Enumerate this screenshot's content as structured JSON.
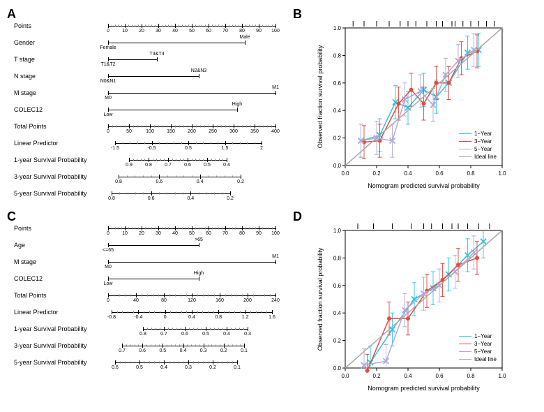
{
  "panels": {
    "A": {
      "rows": [
        {
          "label": "Points",
          "type": "axis",
          "start": 0,
          "end": 240,
          "ticks": [
            0,
            10,
            20,
            30,
            40,
            50,
            60,
            70,
            80,
            90,
            100
          ],
          "tickLabels": [
            "0",
            "10",
            "20",
            "30",
            "40",
            "50",
            "60",
            "70",
            "80",
            "90",
            "100"
          ]
        },
        {
          "label": "Gender",
          "type": "cat",
          "start": 0,
          "end": 196,
          "endpoints": [
            "Female",
            "Male"
          ]
        },
        {
          "label": "T stage",
          "type": "cat",
          "start": 0,
          "end": 70,
          "endpoints": [
            "T1&T2",
            "T3&T4"
          ]
        },
        {
          "label": "N stage",
          "type": "cat",
          "start": 0,
          "end": 130,
          "endpoints": [
            "N0&N1",
            "N2&N3"
          ]
        },
        {
          "label": "M stage",
          "type": "cat",
          "start": 0,
          "end": 240,
          "endpoints": [
            "M0",
            "M1"
          ]
        },
        {
          "label": "COLEC12",
          "type": "cat",
          "start": 0,
          "end": 185,
          "endpoints": [
            "Low",
            "High"
          ]
        },
        {
          "label": "Total Points",
          "type": "axis",
          "start": 0,
          "end": 240,
          "ticks": [
            0,
            50,
            100,
            150,
            200,
            250,
            300,
            350,
            400
          ],
          "tickLabels": [
            "0",
            "50",
            "100",
            "150",
            "200",
            "250",
            "300",
            "350",
            "400"
          ]
        },
        {
          "label": "Linear Predictor",
          "type": "axis",
          "start": 10,
          "end": 220,
          "ticks": [
            -1.5,
            -0.5,
            0.5,
            1.5,
            2
          ],
          "tickLabels": [
            "-1.5",
            "-0.5",
            "0.5",
            "1.5",
            "2"
          ]
        },
        {
          "label": "1-year Survival Probability",
          "type": "axis",
          "start": 30,
          "end": 170,
          "tickLabels": [
            "0.9",
            "0.8",
            "0.7",
            "0.6",
            "0.5",
            "0.4"
          ]
        },
        {
          "label": "3-year Survival Probability",
          "type": "axis",
          "start": 15,
          "end": 190,
          "tickLabels": [
            "0.8",
            "0.6",
            "0.4",
            "0.2"
          ]
        },
        {
          "label": "5-year Survival Probability",
          "type": "axis",
          "start": 5,
          "end": 175,
          "tickLabels": [
            "0.8",
            "0.6",
            "0.4",
            "0.2"
          ]
        }
      ]
    },
    "C": {
      "rows": [
        {
          "label": "Points",
          "type": "axis",
          "start": 0,
          "end": 240,
          "ticks": [
            0,
            10,
            20,
            30,
            40,
            50,
            60,
            70,
            80,
            90,
            100
          ],
          "tickLabels": [
            "0",
            "10",
            "20",
            "30",
            "40",
            "50",
            "60",
            "70",
            "80",
            "90",
            "100"
          ]
        },
        {
          "label": "Age",
          "type": "cat",
          "start": 0,
          "end": 130,
          "endpoints": [
            "<=65",
            ">65"
          ]
        },
        {
          "label": "M stage",
          "type": "cat",
          "start": 0,
          "end": 240,
          "endpoints": [
            "M0",
            "M1"
          ]
        },
        {
          "label": "COLEC12",
          "type": "cat",
          "start": 0,
          "end": 130,
          "endpoints": [
            "Low",
            "High"
          ]
        },
        {
          "label": "Total Points",
          "type": "axis",
          "start": 0,
          "end": 240,
          "tickLabels": [
            "0",
            "40",
            "80",
            "120",
            "160",
            "200",
            "240"
          ]
        },
        {
          "label": "Linear Predictor",
          "type": "axis",
          "start": 5,
          "end": 235,
          "tickLabels": [
            "-0.8",
            "-0.4",
            "0",
            "0.4",
            "0.8",
            "1.2",
            "1.6"
          ]
        },
        {
          "label": "1-year Survival Probability",
          "type": "axis",
          "start": 50,
          "end": 200,
          "tickLabels": [
            "0.8",
            "0.7",
            "0.6",
            "0.5",
            "0.4",
            "0.3"
          ]
        },
        {
          "label": "3-year Survival Probability",
          "type": "axis",
          "start": 20,
          "end": 195,
          "tickLabels": [
            "0.7",
            "0.6",
            "0.5",
            "0.4",
            "0.3",
            "0.2",
            "0.1"
          ]
        },
        {
          "label": "5-year Survival Probability",
          "type": "axis",
          "start": 10,
          "end": 185,
          "tickLabels": [
            "0.6",
            "0.5",
            "0.4",
            "0.3",
            "0.2",
            "0.1"
          ]
        }
      ]
    }
  },
  "calibration": {
    "B": {
      "xlabel": "Nomogram predicted survival probability",
      "ylabel": "Observed fraction survival probability",
      "xlim": [
        0,
        1
      ],
      "ylim": [
        0,
        1
      ],
      "xticks": [
        "0.0",
        "0.2",
        "0.4",
        "0.6",
        "0.8",
        "1.0"
      ],
      "yticks": [
        "0.0",
        "0.2",
        "0.4",
        "0.6",
        "0.8",
        "1.0"
      ],
      "series": [
        {
          "name": "1−Year",
          "color": "#2ec4e6",
          "marker": "x",
          "points": [
            [
              0.1,
              0.18
            ],
            [
              0.22,
              0.22
            ],
            [
              0.32,
              0.46
            ],
            [
              0.4,
              0.42
            ],
            [
              0.5,
              0.55
            ],
            [
              0.58,
              0.5
            ],
            [
              0.66,
              0.6
            ],
            [
              0.78,
              0.82
            ],
            [
              0.85,
              0.84
            ]
          ]
        },
        {
          "name": "3−Year",
          "color": "#e8483c",
          "marker": "circle",
          "points": [
            [
              0.12,
              0.17
            ],
            [
              0.22,
              0.18
            ],
            [
              0.34,
              0.45
            ],
            [
              0.42,
              0.55
            ],
            [
              0.5,
              0.45
            ],
            [
              0.58,
              0.6
            ],
            [
              0.66,
              0.6
            ],
            [
              0.74,
              0.78
            ],
            [
              0.84,
              0.83
            ]
          ]
        },
        {
          "name": "5−Year",
          "color": "#b3a9d6",
          "marker": "x",
          "points": [
            [
              0.1,
              0.18
            ],
            [
              0.2,
              0.2
            ],
            [
              0.3,
              0.18
            ],
            [
              0.38,
              0.48
            ],
            [
              0.48,
              0.54
            ],
            [
              0.56,
              0.44
            ],
            [
              0.64,
              0.66
            ],
            [
              0.72,
              0.76
            ],
            [
              0.82,
              0.84
            ]
          ]
        },
        {
          "name": "Ideal line",
          "color": "#aaaaaa",
          "marker": "none",
          "points": [
            [
              0,
              0
            ],
            [
              1,
              1
            ]
          ]
        }
      ],
      "rugTop": [
        0.05,
        0.12,
        0.2,
        0.28,
        0.35,
        0.4,
        0.45,
        0.52,
        0.58,
        0.62,
        0.68,
        0.7,
        0.75,
        0.8,
        0.85,
        0.9,
        0.95
      ],
      "legendPos": "bottom-right"
    },
    "D": {
      "xlabel": "Nomogram predicted survival probability",
      "ylabel": "Observed fraction survival probability",
      "xlim": [
        0,
        1
      ],
      "ylim": [
        0,
        1
      ],
      "xticks": [
        "0.0",
        "0.2",
        "0.4",
        "0.6",
        "0.8",
        "1.0"
      ],
      "yticks": [
        "0.0",
        "0.2",
        "0.4",
        "0.6",
        "0.8",
        "1.0"
      ],
      "series": [
        {
          "name": "1−Year",
          "color": "#2ec4e6",
          "marker": "x",
          "points": [
            [
              0.16,
              0.04
            ],
            [
              0.3,
              0.28
            ],
            [
              0.44,
              0.5
            ],
            [
              0.56,
              0.58
            ],
            [
              0.66,
              0.68
            ],
            [
              0.78,
              0.82
            ],
            [
              0.88,
              0.92
            ]
          ]
        },
        {
          "name": "3−Year",
          "color": "#e8483c",
          "marker": "circle",
          "points": [
            [
              0.14,
              -0.02
            ],
            [
              0.28,
              0.36
            ],
            [
              0.4,
              0.36
            ],
            [
              0.52,
              0.56
            ],
            [
              0.62,
              0.64
            ],
            [
              0.72,
              0.75
            ],
            [
              0.84,
              0.8
            ]
          ]
        },
        {
          "name": "5−Year",
          "color": "#b3a9d6",
          "marker": "x",
          "points": [
            [
              0.12,
              0.02
            ],
            [
              0.26,
              0.05
            ],
            [
              0.38,
              0.42
            ],
            [
              0.5,
              0.54
            ],
            [
              0.6,
              0.6
            ],
            [
              0.7,
              0.7
            ],
            [
              0.82,
              0.84
            ]
          ]
        },
        {
          "name": "Ideal line",
          "color": "#aaaaaa",
          "marker": "none",
          "points": [
            [
              0,
              0
            ],
            [
              1,
              1
            ]
          ]
        }
      ],
      "rugTop": [
        0.08,
        0.18,
        0.3,
        0.42,
        0.5,
        0.55,
        0.62,
        0.68,
        0.72,
        0.78,
        0.85,
        0.92
      ],
      "legendPos": "bottom-right"
    }
  },
  "colors": {
    "axis": "#000000",
    "background": "#ffffff",
    "errorbar_opacity": 0.9
  },
  "font": {
    "family": "Arial",
    "labelSize": 9,
    "tickSize": 7,
    "panelLabelSize": 18
  }
}
